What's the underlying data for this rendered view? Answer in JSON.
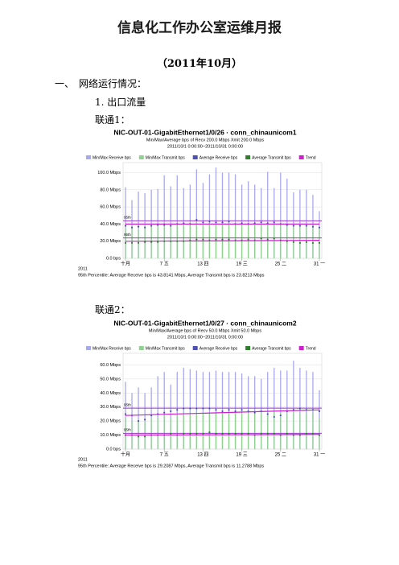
{
  "document": {
    "title": "信息化工作办公室运维月报",
    "subtitle": "（2011年10月）",
    "section": "一、　网络运行情况：",
    "subsection": "1. 出口流量",
    "links": [
      "联通1：",
      "联通2："
    ]
  },
  "chart_data": [
    {
      "type": "mrtg",
      "title": "NIC-OUT-01-GigabitEthernet1/0/26 · conn_chinaunicom1",
      "subtitle": "Min/Max/Average bps of    Recv 200.0 Mbps   Xmit 200.0 Mbps",
      "period": "2011/10/1 0:00:00~2011/10/31 0:00:00",
      "year": "2011",
      "footer": "95th Percentile: Average Receive bps is 43.8141 Mbps, Average Transmit bps is 23.8213 Mbps",
      "x": [
        1,
        2,
        3,
        4,
        5,
        6,
        7,
        8,
        9,
        10,
        11,
        12,
        13,
        14,
        15,
        16,
        17,
        18,
        19,
        20,
        21,
        22,
        23,
        24,
        25,
        26,
        27,
        28,
        29,
        30,
        31
      ],
      "xlim": [
        1,
        31
      ],
      "xticks": [
        {
          "value": 1,
          "label": "十月"
        },
        {
          "value": 7,
          "label": "7 五"
        },
        {
          "value": 13,
          "label": "13 四"
        },
        {
          "value": 19,
          "label": "19 三"
        },
        {
          "value": 25,
          "label": "25 二"
        },
        {
          "value": 31,
          "label": "31 一"
        }
      ],
      "ylim": [
        0,
        108
      ],
      "yticks": [
        {
          "value": 0,
          "label": "0.0 bps"
        },
        {
          "value": 20,
          "label": "20.0 Mbps"
        },
        {
          "value": 40,
          "label": "40.0 Mbps"
        },
        {
          "value": 60,
          "label": "60.0 Mbps"
        },
        {
          "value": 80,
          "label": "80.0 Mbps"
        },
        {
          "value": 100,
          "label": "100.0 Mbps"
        }
      ],
      "grid": true,
      "series": [
        {
          "name": "Min/Max Receive bps",
          "kind": "bar",
          "color": "#a8a8ee",
          "values": [
            83,
            68,
            78,
            76,
            80,
            81,
            97,
            84,
            97,
            82,
            86,
            104,
            88,
            98,
            106,
            100,
            100,
            98,
            86,
            90,
            86,
            82,
            101,
            82,
            100,
            93,
            77,
            80,
            80,
            74,
            55
          ]
        },
        {
          "name": "Min/Max Transmit bps",
          "kind": "bar",
          "color": "#90d090",
          "values": [
            36,
            38,
            34,
            38,
            38,
            40,
            42,
            40,
            42,
            40,
            44,
            44,
            42,
            44,
            42,
            42,
            44,
            42,
            40,
            40,
            44,
            40,
            44,
            42,
            42,
            40,
            38,
            40,
            40,
            40,
            36
          ]
        },
        {
          "name": "Average Receive bps",
          "kind": "point",
          "color": "#5050b0",
          "values": [
            38,
            36,
            37,
            36,
            38,
            39,
            39,
            38,
            40,
            41,
            40,
            45,
            42,
            43,
            42,
            42,
            43,
            40,
            41,
            40,
            41,
            42,
            41,
            42,
            40,
            39,
            38,
            38,
            38,
            37,
            36
          ]
        },
        {
          "name": "Average Transmit bps",
          "kind": "point",
          "color": "#2f7f2f",
          "values": [
            18,
            18,
            18,
            19,
            19,
            19,
            20,
            20,
            20,
            20,
            21,
            22,
            22,
            21,
            22,
            22,
            22,
            21,
            21,
            22,
            21,
            23,
            22,
            23,
            21,
            20,
            19,
            18,
            19,
            18,
            18
          ]
        },
        {
          "name": "Trend",
          "kind": "line",
          "color": "#cc22cc",
          "x": [
            1,
            31
          ],
          "values": [
            40,
            40
          ]
        }
      ],
      "extra_lines": [
        {
          "kind": "line",
          "color": "#cc22cc",
          "x": [
            1,
            31
          ],
          "values": [
            20,
            21
          ]
        }
      ],
      "percentiles": [
        {
          "label": "95th",
          "value": 43.8141,
          "color": "#9933cc"
        },
        {
          "label": "95th",
          "value": 23.8213,
          "color": "#9933cc"
        }
      ]
    },
    {
      "type": "mrtg",
      "title": "NIC-OUT-01-GigabitEthernet1/0/27 · conn_chinaunicom2",
      "subtitle": "Min/Max/Average bps of    Recv 50.0 Mbps   Xmit 50.0 Mbps",
      "period": "2011/10/1 0:00:00~2011/10/31 0:00:00",
      "year": "2011",
      "footer": "95th Percentile: Average Receive bps is 29.2087 Mbps, Average Transmit bps is 11.2788 Mbps",
      "x": [
        1,
        2,
        3,
        4,
        5,
        6,
        7,
        8,
        9,
        10,
        11,
        12,
        13,
        14,
        15,
        16,
        17,
        18,
        19,
        20,
        21,
        22,
        23,
        24,
        25,
        26,
        27,
        28,
        29,
        30,
        31
      ],
      "xlim": [
        1,
        31
      ],
      "xticks": [
        {
          "value": 1,
          "label": "十月"
        },
        {
          "value": 7,
          "label": "7 五"
        },
        {
          "value": 13,
          "label": "13 四"
        },
        {
          "value": 19,
          "label": "19 三"
        },
        {
          "value": 25,
          "label": "25 二"
        },
        {
          "value": 31,
          "label": "31 一"
        }
      ],
      "ylim": [
        0,
        66
      ],
      "yticks": [
        {
          "value": 0,
          "label": "0.0 bps"
        },
        {
          "value": 10,
          "label": "10.0 Mbps"
        },
        {
          "value": 20,
          "label": "20.0 Mbps"
        },
        {
          "value": 30,
          "label": "30.0 Mbps"
        },
        {
          "value": 40,
          "label": "40.0 Mbps"
        },
        {
          "value": 50,
          "label": "50.0 Mbps"
        },
        {
          "value": 60,
          "label": "60.0 Mbps"
        }
      ],
      "grid": true,
      "series": [
        {
          "name": "Min/Max Receive bps",
          "kind": "bar",
          "color": "#a8a8ee",
          "values": [
            48,
            40,
            44,
            40,
            44,
            52,
            55,
            46,
            55,
            58,
            57,
            56,
            55,
            55,
            56,
            55,
            55,
            55,
            54,
            52,
            52,
            50,
            55,
            58,
            56,
            56,
            63,
            58,
            56,
            55,
            42
          ]
        },
        {
          "name": "Min/Max Transmit bps",
          "kind": "bar",
          "color": "#90d090",
          "values": [
            22,
            20,
            20,
            20,
            22,
            22,
            24,
            22,
            24,
            26,
            26,
            26,
            26,
            26,
            26,
            27,
            26,
            26,
            26,
            26,
            26,
            26,
            26,
            28,
            26,
            26,
            28,
            26,
            26,
            26,
            22
          ]
        },
        {
          "name": "Average Receive bps",
          "kind": "point",
          "color": "#5050b0",
          "values": [
            25,
            24,
            20,
            21,
            24,
            25,
            26,
            27,
            28,
            29,
            29,
            29,
            29,
            29,
            28,
            27,
            28,
            27,
            28,
            27,
            26,
            27,
            25,
            23,
            24,
            27,
            28,
            29,
            28,
            28,
            27
          ]
        },
        {
          "name": "Average Transmit bps",
          "kind": "point",
          "color": "#2f7f2f",
          "values": [
            10,
            10,
            9,
            9,
            10,
            10,
            10,
            11,
            10,
            11,
            11,
            11,
            11,
            12,
            11,
            11,
            11,
            11,
            11,
            11,
            10,
            11,
            11,
            11,
            10,
            11,
            10,
            10,
            11,
            11,
            10
          ]
        },
        {
          "name": "Trend",
          "kind": "line",
          "color": "#cc22cc",
          "x": [
            1,
            31
          ],
          "values": [
            24,
            28
          ]
        }
      ],
      "extra_lines": [
        {
          "kind": "line",
          "color": "#cc22cc",
          "x": [
            1,
            31
          ],
          "values": [
            10,
            10.5
          ]
        }
      ],
      "percentiles": [
        {
          "label": "95th",
          "value": 29.2087,
          "color": "#9933cc"
        },
        {
          "label": "95th",
          "value": 11.2788,
          "color": "#9933cc"
        }
      ]
    }
  ]
}
